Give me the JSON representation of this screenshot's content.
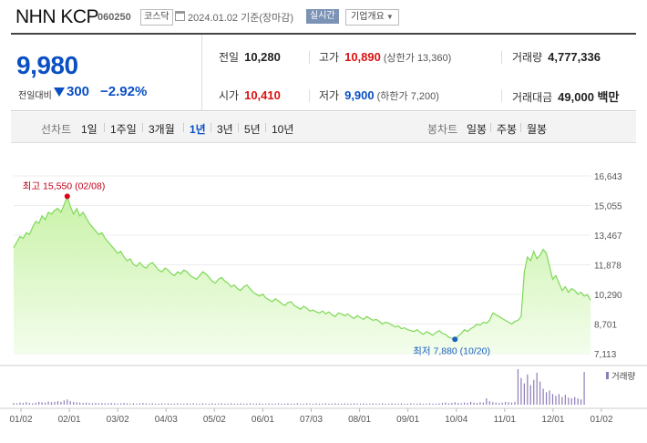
{
  "header": {
    "title": "NHN KCP",
    "code": "060250",
    "market": "코스닥",
    "date_text": "2024.01.02  기준(장마감)",
    "realtime": "실시간",
    "company_info": "기업개요"
  },
  "quote": {
    "price": "9,980",
    "change_label": "전일대비",
    "change": "300",
    "change_rate": "−2.92%",
    "prev_close_label": "전일",
    "prev_close": "10,280",
    "high_label": "고가",
    "high": "10,890",
    "upper_limit": "(상한가 13,360)",
    "volume_label": "거래량",
    "volume": "4,777,336",
    "open_label": "시가",
    "open": "10,410",
    "low_label": "저가",
    "low": "9,900",
    "lower_limit": "(하한가 7,200)",
    "amount_label": "거래대금",
    "amount": "49,000 백만"
  },
  "period_bar": {
    "line_label": "선차트",
    "periods": [
      "1일",
      "1주일",
      "3개월",
      "1년",
      "3년",
      "5년",
      "10년"
    ],
    "active_period": "1년",
    "candle_label": "봉차트",
    "candles": [
      "일봉",
      "주봉",
      "월봉"
    ]
  },
  "colors": {
    "line": "#7ed957",
    "fill_top": "#c9f2a8",
    "fill_bottom": "#f3fdec",
    "max": "#e0001a",
    "min": "#1e5fc4",
    "volume": "#8f7bb8"
  },
  "chart_data": {
    "type": "area",
    "ylim": [
      7113,
      16643
    ],
    "y_ticks": [
      "16,643",
      "15,055",
      "13,467",
      "11,878",
      "10,290",
      "8,701",
      "7,113"
    ],
    "x_ticks": [
      "01/02",
      "02/01",
      "03/02",
      "04/03",
      "05/02",
      "06/01",
      "07/03",
      "08/01",
      "09/01",
      "10/04",
      "11/01",
      "12/01",
      "01/02"
    ],
    "max_label": "최고 15,550 (02/08)",
    "min_label": "최저 7,880 (10/20)",
    "max_point": {
      "date": "02/08",
      "value": 15550
    },
    "min_point": {
      "date": "10/20",
      "value": 7880
    },
    "volume_label": "거래량",
    "series": [
      {
        "values": [
          12800,
          13100,
          13400,
          13300,
          13600,
          13500,
          13900,
          14200,
          14100,
          14500,
          14300,
          14700,
          14600,
          14800,
          14900,
          14700,
          15100,
          15550,
          15000,
          14600,
          14900,
          14500,
          14700,
          14400,
          14100,
          13900,
          13700,
          13500,
          13600,
          13300,
          13100,
          12900,
          12700,
          12500,
          12600,
          12300,
          12100,
          12200,
          11900,
          11800,
          12000,
          11800,
          11700,
          11900,
          12000,
          11800,
          11600,
          11500,
          11700,
          11600,
          11400,
          11300,
          11500,
          11400,
          11600,
          11500,
          11300,
          11200,
          11100,
          11300,
          11500,
          11400,
          11200,
          11000,
          10900,
          11100,
          11200,
          11000,
          10900,
          10700,
          10800,
          10600,
          10500,
          10700,
          10800,
          10600,
          10400,
          10300,
          10200,
          10300,
          10100,
          10000,
          9900,
          10050,
          9950,
          9800,
          9700,
          9850,
          9900,
          9700,
          9600,
          9500,
          9650,
          9550,
          9400,
          9450,
          9350,
          9300,
          9400,
          9250,
          9350,
          9200,
          9100,
          9300,
          9250,
          9150,
          9250,
          9100,
          9000,
          9150,
          9050,
          8950,
          9100,
          9000,
          8900,
          8950,
          8850,
          8700,
          8800,
          8750,
          8650,
          8550,
          8600,
          8450,
          8500,
          8400,
          8350,
          8300,
          8400,
          8250,
          8150,
          8300,
          8200,
          8100,
          8250,
          8350,
          8200,
          8150,
          8000,
          7950,
          7880,
          8050,
          8200,
          8400,
          8300,
          8450,
          8550,
          8700,
          8650,
          8800,
          8750,
          8900,
          9300,
          9200,
          9100,
          9000,
          8900,
          8800,
          8700,
          8850,
          8900,
          9100,
          11500,
          12300,
          12100,
          12600,
          12200,
          12400,
          12700,
          12500,
          11800,
          11100,
          11300,
          10900,
          10500,
          10700,
          10400,
          10600,
          10500,
          10300,
          10400,
          10200,
          10280,
          9980
        ]
      }
    ],
    "volume": [
      0.05,
      0.04,
      0.06,
      0.05,
      0.07,
      0.05,
      0.04,
      0.06,
      0.08,
      0.07,
      0.06,
      0.09,
      0.07,
      0.08,
      0.1,
      0.08,
      0.12,
      0.15,
      0.1,
      0.08,
      0.07,
      0.06,
      0.05,
      0.06,
      0.05,
      0.04,
      0.05,
      0.04,
      0.05,
      0.04,
      0.04,
      0.05,
      0.04,
      0.03,
      0.04,
      0.05,
      0.04,
      0.03,
      0.04,
      0.03,
      0.04,
      0.05,
      0.04,
      0.03,
      0.04,
      0.03,
      0.03,
      0.04,
      0.03,
      0.04,
      0.03,
      0.03,
      0.04,
      0.03,
      0.03,
      0.04,
      0.03,
      0.04,
      0.03,
      0.03,
      0.04,
      0.03,
      0.03,
      0.04,
      0.03,
      0.03,
      0.04,
      0.03,
      0.03,
      0.04,
      0.03,
      0.03,
      0.04,
      0.03,
      0.03,
      0.04,
      0.03,
      0.03,
      0.04,
      0.03,
      0.03,
      0.04,
      0.03,
      0.03,
      0.04,
      0.03,
      0.03,
      0.04,
      0.03,
      0.03,
      0.04,
      0.03,
      0.03,
      0.04,
      0.03,
      0.03,
      0.04,
      0.03,
      0.03,
      0.04,
      0.03,
      0.03,
      0.04,
      0.03,
      0.03,
      0.04,
      0.03,
      0.03,
      0.04,
      0.03,
      0.03,
      0.04,
      0.03,
      0.03,
      0.04,
      0.03,
      0.03,
      0.04,
      0.03,
      0.03,
      0.04,
      0.03,
      0.03,
      0.04,
      0.03,
      0.03,
      0.04,
      0.03,
      0.03,
      0.04,
      0.03,
      0.03,
      0.04,
      0.03,
      0.03,
      0.04,
      0.05,
      0.06,
      0.04,
      0.05,
      0.07,
      0.05,
      0.04,
      0.06,
      0.05,
      0.08,
      0.06,
      0.05,
      0.07,
      0.06,
      0.18,
      0.1,
      0.07,
      0.06,
      0.05,
      0.06,
      0.08,
      0.07,
      0.06,
      0.08,
      1.0,
      0.75,
      0.6,
      0.85,
      0.55,
      0.7,
      0.9,
      0.65,
      0.45,
      0.35,
      0.4,
      0.3,
      0.25,
      0.3,
      0.22,
      0.28,
      0.2,
      0.18,
      0.22,
      0.18,
      0.15,
      0.92
    ]
  }
}
